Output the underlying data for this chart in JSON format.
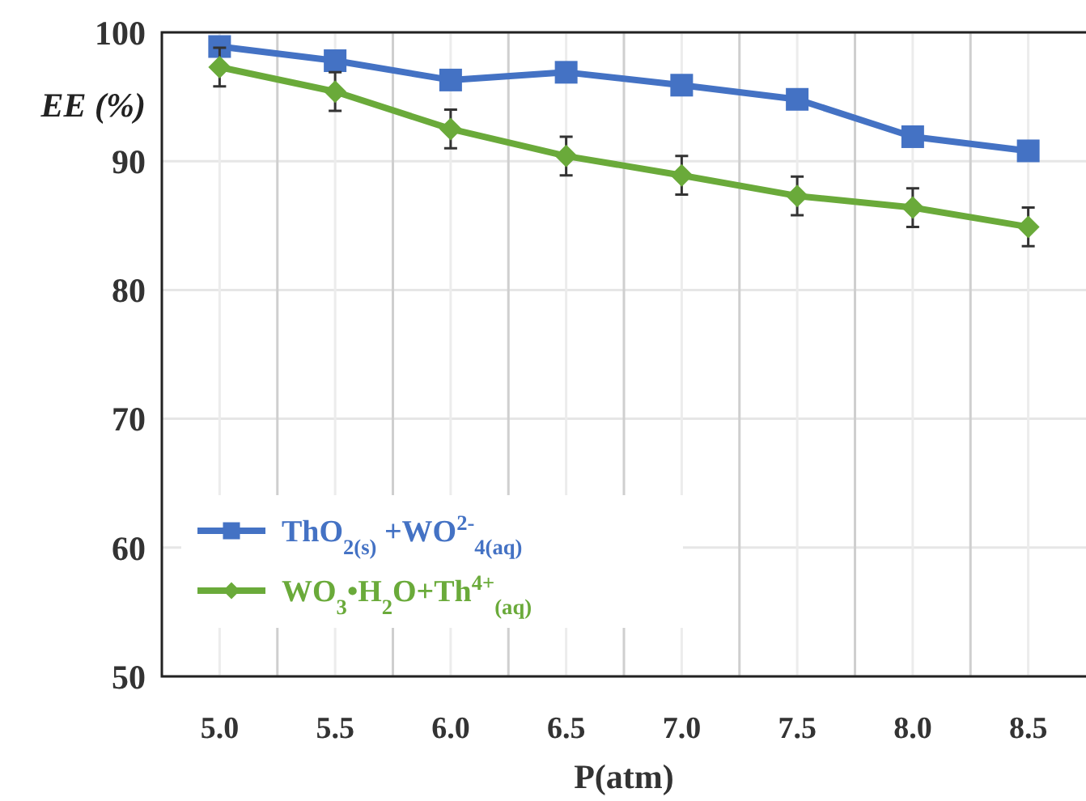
{
  "chart_data": {
    "type": "line",
    "xlabel": "P(atm)",
    "ylabel": "EE (%)",
    "categories": [
      "5.0",
      "5.5",
      "6.0",
      "6.5",
      "7.0",
      "7.5",
      "8.0",
      "8.5"
    ],
    "ylim": [
      50,
      100
    ],
    "yticks": [
      50,
      60,
      70,
      80,
      90,
      100
    ],
    "grid": true,
    "legend": "bottom left",
    "line_style": "solid",
    "series": [
      {
        "name": "ThO$_{2(s)}$ +WO$^{2-}$$_{4(aq)}$",
        "color": "#4472c4",
        "marker": "square",
        "values": [
          98.9,
          97.8,
          96.3,
          96.9,
          95.9,
          94.8,
          91.9,
          90.8
        ]
      },
      {
        "name": "WO$_{3}$•H$_{2}$O+Th$^{4+}$$_{(aq)}$",
        "color": "#6aaa3a",
        "marker": "diamond",
        "values": [
          97.3,
          95.4,
          92.5,
          90.4,
          88.9,
          87.3,
          86.4,
          84.9
        ],
        "errors": [
          1.5,
          1.5,
          1.5,
          1.5,
          1.5,
          1.5,
          1.5,
          1.5
        ]
      }
    ]
  }
}
